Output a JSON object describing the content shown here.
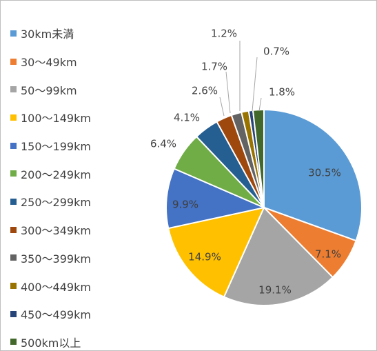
{
  "chart_data": {
    "type": "pie",
    "legend_position": "left",
    "categories": [
      "30km未満",
      "30〜49km",
      "50〜99km",
      "100〜149km",
      "150〜199km",
      "200〜249km",
      "250〜299km",
      "300〜349km",
      "350〜399km",
      "400〜449km",
      "450〜499km",
      "500km以上"
    ],
    "values": [
      30.5,
      7.1,
      19.1,
      14.9,
      9.9,
      6.4,
      4.1,
      2.6,
      1.7,
      1.2,
      0.7,
      1.8
    ],
    "labels": [
      "30.5%",
      "7.1%",
      "19.1%",
      "14.9%",
      "9.9%",
      "6.4%",
      "4.1%",
      "2.6%",
      "1.7%",
      "1.2%",
      "0.7%",
      "1.8%"
    ],
    "colors": [
      "#5B9BD5",
      "#ED7D31",
      "#A5A5A5",
      "#FFC000",
      "#4472C4",
      "#70AD47",
      "#255E91",
      "#9E480E",
      "#636363",
      "#997300",
      "#264478",
      "#43682B"
    ]
  }
}
